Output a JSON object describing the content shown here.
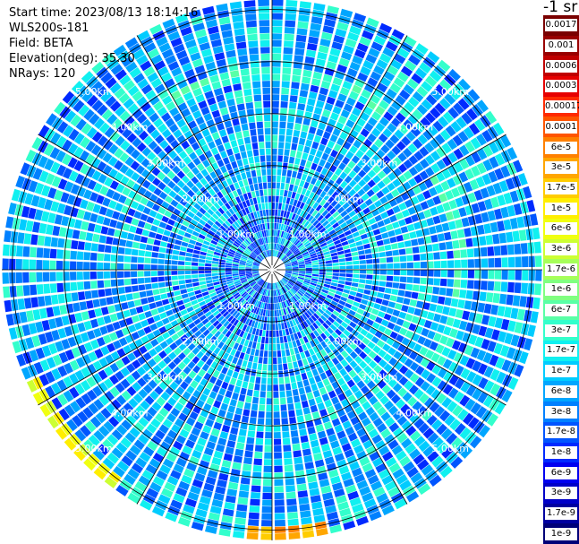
{
  "info": {
    "start_time": "Start time: 2023/08/13 18:14:16",
    "instrument": "WLS200s-181",
    "field": "Field: BETA",
    "elevation": "Elevation(deg): 35.30",
    "nrays": "NRays: 120"
  },
  "colorbar": {
    "unit": "-1 sr",
    "ticks": [
      "0.0017",
      "0.001",
      "0.0006",
      "0.0003",
      "0.00017",
      "0.0001",
      "6e-5",
      "3e-5",
      "1.7e-5",
      "1e-5",
      "6e-6",
      "3e-6",
      "1.7e-6",
      "1e-6",
      "6e-7",
      "3e-7",
      "1.7e-7",
      "1e-7",
      "6e-8",
      "3e-8",
      "1.7e-8",
      "1e-8",
      "6e-9",
      "3e-9",
      "1.7e-9",
      "1e-9"
    ],
    "colors": [
      "#7a0000",
      "#990000",
      "#c00000",
      "#e60000",
      "#ff2a00",
      "#ff5500",
      "#ff8000",
      "#ffa600",
      "#ffcc00",
      "#ffee00",
      "#f0ff10",
      "#ccff33",
      "#a6ff59",
      "#80ff80",
      "#59ffa6",
      "#33ffcc",
      "#10f0f0",
      "#00ccff",
      "#00a6ff",
      "#0080ff",
      "#0055ff",
      "#002aff",
      "#0000f0",
      "#0000c8",
      "#0000a0",
      "#000078"
    ]
  },
  "chart_data": {
    "type": "heatmap",
    "projection": "polar-ppi",
    "field": "BETA",
    "units": "-1 sr",
    "elevation_deg": 35.3,
    "n_rays": 120,
    "max_range_km": 5.2,
    "range_rings_km": [
      1,
      2,
      3,
      4,
      5
    ],
    "range_labels": [
      "1.00km",
      "2.00km",
      "3.00km",
      "4.00km",
      "5.00km"
    ],
    "spoke_angles_deg": [
      0,
      30,
      60,
      90,
      120,
      150
    ],
    "color_scale": "log",
    "value_range": [
      1e-09,
      0.0017
    ],
    "typical_value": 6e-08,
    "features": [
      {
        "description": "enhanced backscatter band",
        "range_km": [
          3.6,
          3.9
        ],
        "azimuth_deg": [
          -35,
          35
        ],
        "value": 3e-07
      },
      {
        "description": "enhanced backscatter band",
        "range_km": [
          3.5,
          3.8
        ],
        "azimuth_deg": [
          60,
          120
        ],
        "value": 3e-07
      },
      {
        "description": "high backscatter at far range",
        "range_km": [
          4.9,
          5.2
        ],
        "azimuth_deg": [
          215,
          245
        ],
        "value": 6e-06
      },
      {
        "description": "high backscatter at far range",
        "range_km": [
          5.0,
          5.2
        ],
        "azimuth_deg": [
          168,
          185
        ],
        "value": 3e-05
      }
    ]
  }
}
